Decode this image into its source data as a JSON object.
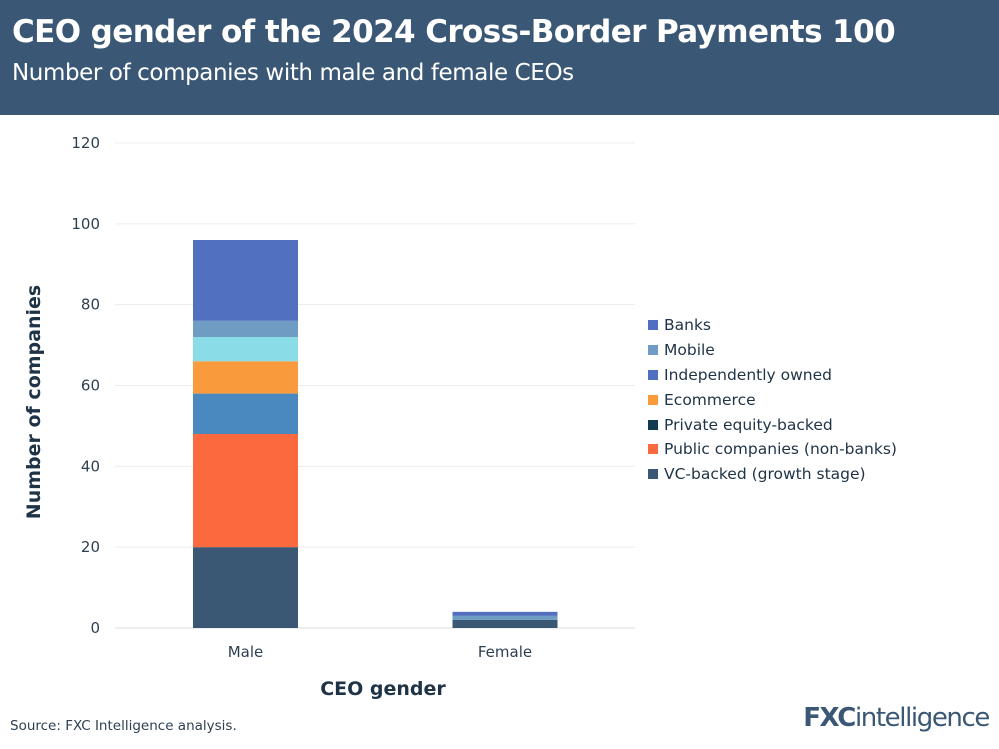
{
  "header": {
    "title": "CEO gender of the 2024 Cross-Border Payments 100",
    "subtitle": "Number of companies with male and female CEOs"
  },
  "chart_data": {
    "type": "bar",
    "stacked": true,
    "categories": [
      "Male",
      "Female"
    ],
    "xlabel": "CEO gender",
    "ylabel": "Number of companies",
    "ylim": [
      0,
      120
    ],
    "yticks": [
      0,
      20,
      40,
      60,
      80,
      100,
      120
    ],
    "grid": true,
    "legend_placement": "right",
    "series": [
      {
        "name": "VC-backed (growth stage)",
        "values": [
          20,
          2
        ],
        "color": "#3a5874",
        "legend_color": "#3a5874"
      },
      {
        "name": "Public companies (non-banks)",
        "values": [
          28,
          0
        ],
        "color": "#fb6a3f",
        "legend_color": "#fb6a3f"
      },
      {
        "name": "Private equity-backed",
        "values": [
          10,
          0
        ],
        "color": "#4a89c0",
        "legend_color": "#0f3a4f"
      },
      {
        "name": "Ecommerce",
        "values": [
          8,
          0
        ],
        "color": "#f99a3c",
        "legend_color": "#f99a3c"
      },
      {
        "name": "Independently owned",
        "values": [
          6,
          0
        ],
        "color": "#8adde6",
        "legend_color": "#4f6fc0"
      },
      {
        "name": "Mobile",
        "values": [
          4,
          1
        ],
        "color": "#6f9cc2",
        "legend_color": "#6f9bc4"
      },
      {
        "name": "Banks",
        "values": [
          20,
          1
        ],
        "color": "#5170bf",
        "legend_color": "#4f6fc0"
      }
    ]
  },
  "footer": {
    "source": "Source: FXC Intelligence analysis.",
    "logo": "FXCintelligence"
  }
}
